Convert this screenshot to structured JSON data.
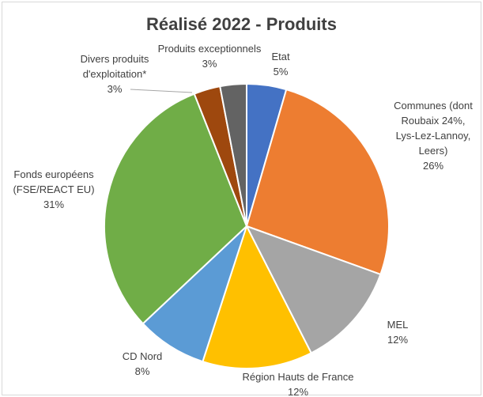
{
  "chart_data": {
    "type": "pie",
    "title": "Réalisé 2022 - Produits",
    "slices": [
      {
        "label_lines": [
          "Etat"
        ],
        "pct_label": "5%",
        "value": 4.5,
        "color": "#4472c4"
      },
      {
        "label_lines": [
          "Communes (dont",
          "Roubaix 24%,",
          "Lys-Lez-Lannoy,",
          "Leers)"
        ],
        "pct_label": "26%",
        "value": 26,
        "color": "#ed7d31"
      },
      {
        "label_lines": [
          "MEL"
        ],
        "pct_label": "12%",
        "value": 12,
        "color": "#a5a5a5"
      },
      {
        "label_lines": [
          "Région Hauts de France"
        ],
        "pct_label": "12%",
        "value": 12.5,
        "color": "#ffc000"
      },
      {
        "label_lines": [
          "CD Nord"
        ],
        "pct_label": "8%",
        "value": 8,
        "color": "#5b9bd5"
      },
      {
        "label_lines": [
          "Fonds européens",
          "(FSE/REACT EU)"
        ],
        "pct_label": "31%",
        "value": 31,
        "color": "#70ad47"
      },
      {
        "label_lines": [
          "Divers produits",
          "d'exploitation*"
        ],
        "pct_label": "3%",
        "value": 3,
        "color": "#9e480e"
      },
      {
        "label_lines": [
          "Produits exceptionnels"
        ],
        "pct_label": "3%",
        "value": 3,
        "color": "#636363"
      }
    ]
  }
}
